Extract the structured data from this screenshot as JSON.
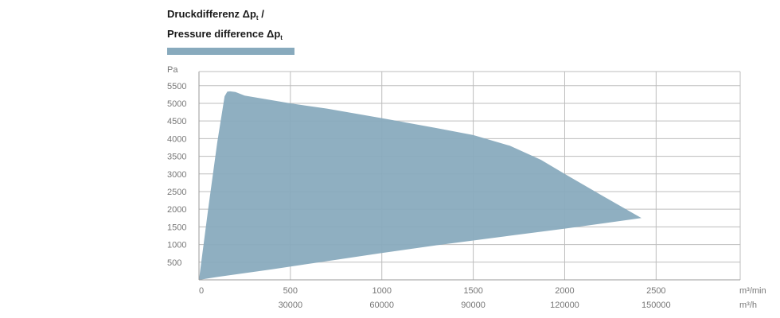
{
  "title": {
    "line1_prefix": "Druckdifferenz Δp",
    "line1_sub": "t",
    "line1_suffix": " /",
    "line2_prefix": "Pressure difference Δp",
    "line2_sub": "t"
  },
  "colors": {
    "area": "#88aabd",
    "grid": "#bdbdbd",
    "axis": "#9a9a9a"
  },
  "chart_data": {
    "type": "area",
    "ylabel": "Pa",
    "x_unit": "m³/min",
    "x2_unit": "m³/h",
    "xlim": [
      0,
      2960
    ],
    "ylim": [
      0,
      5900
    ],
    "grid": true,
    "x_ticks": [
      0,
      500,
      1000,
      1500,
      2000,
      2500
    ],
    "x_tick_labels": [
      "0",
      "500",
      "1000",
      "1500",
      "2000",
      "2500"
    ],
    "x2_ticks": [
      500,
      1000,
      1500,
      2000,
      2500
    ],
    "x2_tick_labels": [
      "30000",
      "60000",
      "90000",
      "120000",
      "150000"
    ],
    "y_ticks": [
      500,
      1000,
      1500,
      2000,
      2500,
      3000,
      3500,
      4000,
      4500,
      5000,
      5500
    ],
    "y_tick_labels": [
      "500",
      "1000",
      "1500",
      "2000",
      "2500",
      "3000",
      "3500",
      "4000",
      "4500",
      "5000",
      "5500"
    ],
    "series": [
      {
        "upper": {
          "x": [
            0,
            50,
            100,
            140,
            155,
            170,
            200,
            250,
            500,
            700,
            1000,
            1300,
            1500,
            1700,
            1870,
            2000,
            2200,
            2420
          ],
          "y": [
            0,
            2000,
            3900,
            5200,
            5330,
            5340,
            5320,
            5220,
            5000,
            4850,
            4580,
            4300,
            4100,
            3800,
            3400,
            3000,
            2400,
            1750
          ]
        },
        "lower": {
          "x": [
            0,
            100,
            400,
            700,
            1000,
            1300,
            1700,
            2000,
            2420
          ],
          "y": [
            0,
            80,
            300,
            530,
            760,
            980,
            1250,
            1450,
            1750
          ]
        }
      }
    ]
  }
}
